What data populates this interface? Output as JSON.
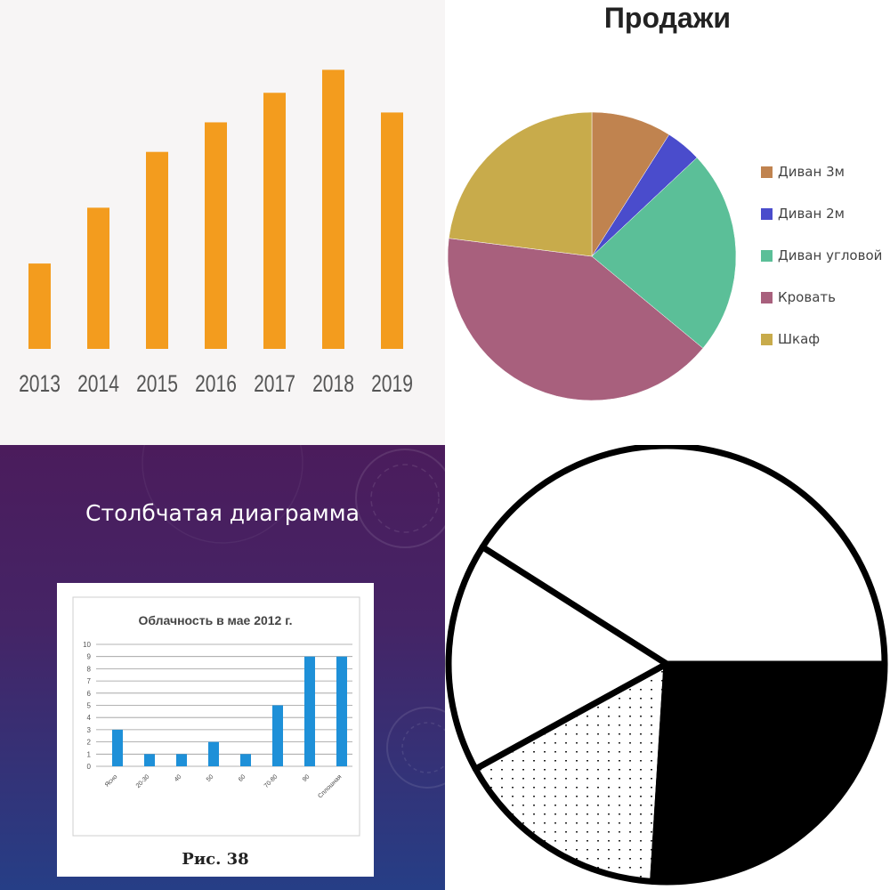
{
  "panels": {
    "bars": {
      "chart_data": {
        "type": "bar",
        "categories": [
          "2013",
          "2014",
          "2015",
          "2016",
          "2017",
          "2018",
          "2019"
        ],
        "values": [
          26,
          43,
          60,
          69,
          78,
          85,
          72
        ],
        "ylim": [
          0,
          90
        ],
        "grid": false,
        "legend": "none",
        "title": "",
        "xlabel": "",
        "ylabel": ""
      },
      "bar_color": "#f39c1e",
      "background": "#f7f5f5"
    },
    "pie": {
      "title": "Продажи",
      "chart_data": {
        "type": "pie",
        "title": "Продажи",
        "slices": [
          {
            "label": "Диван 3м",
            "value": 9,
            "color": "#c0834f"
          },
          {
            "label": "Диван 2м",
            "value": 4,
            "color": "#4a4ccc"
          },
          {
            "label": "Диван угловой",
            "value": 23,
            "color": "#5bbf98"
          },
          {
            "label": "Кровать",
            "value": 41,
            "color": "#a8607d"
          },
          {
            "label": "Шкаф",
            "value": 23,
            "color": "#c8ab4b"
          }
        ],
        "legend": "right"
      }
    },
    "slide": {
      "title": "Столбчатая диаграмма",
      "caption": "Рис. 38",
      "chart_data": {
        "type": "bar",
        "title": "Облачность в мае 2012 г.",
        "categories": [
          "Ясно",
          "20-30",
          "40",
          "50",
          "60",
          "70-80",
          "90",
          "Сплошная"
        ],
        "values": [
          3,
          1,
          1,
          2,
          1,
          5,
          9,
          9
        ],
        "yticks": [
          "0",
          "1",
          "2",
          "3",
          "4",
          "5",
          "6",
          "7",
          "8",
          "9",
          "10"
        ],
        "ylim": [
          0,
          10
        ],
        "grid": true,
        "legend": "none",
        "xlabel": "",
        "ylabel": ""
      },
      "bar_color": "#1e90d8"
    },
    "bw_pie": {
      "chart_data": {
        "type": "pie",
        "slices": [
          {
            "value": 41,
            "fill": "white"
          },
          {
            "value": 17,
            "fill": "white"
          },
          {
            "value": 16,
            "fill": "dotted"
          },
          {
            "value": 26,
            "fill": "black"
          }
        ],
        "legend": "none"
      }
    }
  }
}
